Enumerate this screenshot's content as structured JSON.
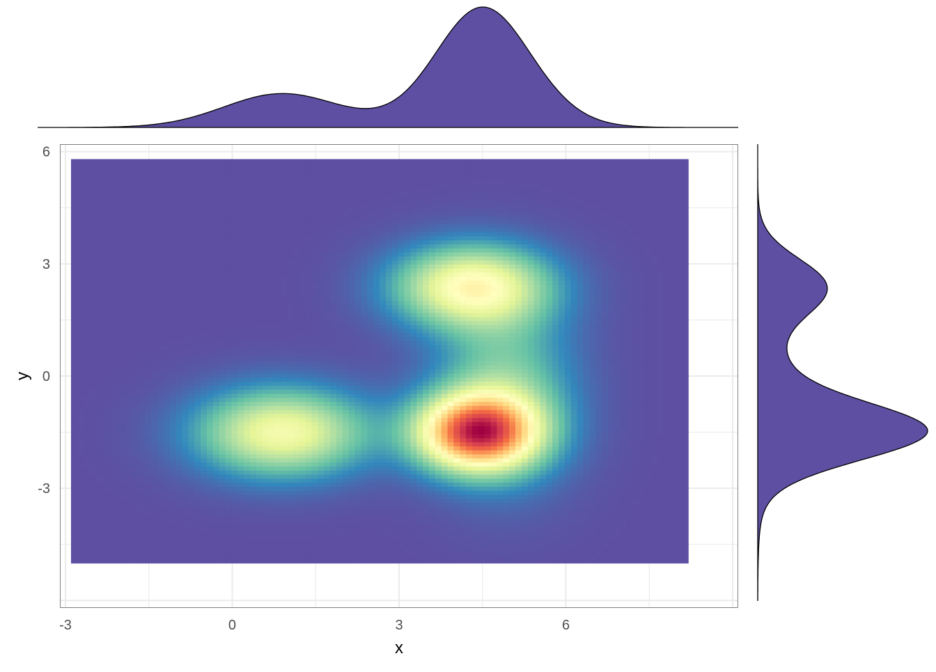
{
  "chart_data": {
    "type": "heatmap",
    "subtype": "2d density with marginal density plots",
    "xlabel": "x",
    "ylabel": "y",
    "xlim": [
      -3.1,
      9.1
    ],
    "ylim": [
      -6.2,
      6.2
    ],
    "x_ticks": [
      -3,
      0,
      3,
      6
    ],
    "x_tick_labels": [
      "-3",
      "0",
      "3",
      "6"
    ],
    "y_ticks": [
      6,
      3,
      0,
      -3
    ],
    "y_tick_labels": [
      "6",
      "3",
      "0",
      "-3"
    ],
    "grid": true,
    "raster_extent": {
      "x": [
        -2.9,
        8.2
      ],
      "y": [
        -5.0,
        5.8
      ]
    },
    "clusters": [
      {
        "x": 0.9,
        "y": -1.5,
        "sx": 1.05,
        "sy": 0.8,
        "weight": 0.55
      },
      {
        "x": 4.3,
        "y": 2.4,
        "sx": 0.95,
        "sy": 0.75,
        "weight": 0.6
      },
      {
        "x": 4.4,
        "y": -1.5,
        "sx": 0.75,
        "sy": 0.7,
        "weight": 1.0
      },
      {
        "x": 4.9,
        "y": -0.4,
        "sx": 0.85,
        "sy": 1.6,
        "weight": 0.3
      }
    ],
    "palette": "Spectral (reversed)",
    "colors": {
      "low": "#5E4FA2",
      "scale": [
        "#5E4FA2",
        "#3288BD",
        "#66C2A5",
        "#ABDDA4",
        "#E6F598",
        "#FFFFBF",
        "#FEE08B",
        "#FDAE61",
        "#F46D43",
        "#D53E4F",
        "#9E0142"
      ],
      "marginal_fill": "#5E4FA2",
      "marginal_stroke": "#000000",
      "grid": "#ebebeb",
      "panel_border": "#7f7f7f"
    },
    "marginals": {
      "top": "density of x",
      "right": "density of y"
    }
  }
}
